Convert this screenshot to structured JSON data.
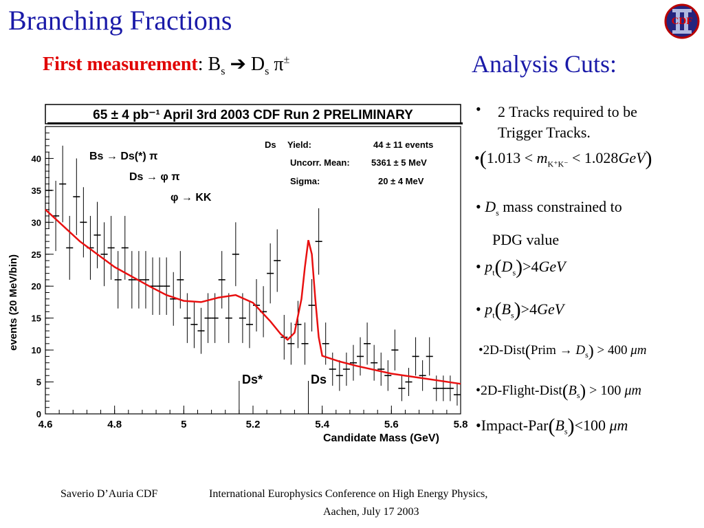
{
  "slide": {
    "title": "Branching Fractions",
    "logo_text": "CDF",
    "measurement_label": "First measurement",
    "measurement_rest": ": B",
    "measurement_sub1": "s",
    "measurement_arrow": " ➔ D",
    "measurement_sub2": "s",
    "measurement_pi": " π",
    "measurement_sup": "±",
    "cuts_title": "Analysis Cuts:",
    "cuts": {
      "c1_line1": "2 Tracks required to be",
      "c1_line2": "Trigger Tracks.",
      "c2_a": "1.013 < ",
      "c2_m": "m",
      "c2_sub": "K⁺K⁻",
      "c2_b": " < 1.028",
      "c2_unit": "GeV",
      "c3_d": "D",
      "c3_sub": "s",
      "c3_text": " mass constrained to",
      "c3_line2": "PDG value",
      "c4_p": "p",
      "c4_psub": "t",
      "c4_d": "D",
      "c4_dsub": "s",
      "c4_val": ">4",
      "c4_unit": "GeV",
      "c5_p": "p",
      "c5_psub": "t",
      "c5_b": "B",
      "c5_bsub": "s",
      "c5_val": ">4",
      "c5_unit": "GeV",
      "c6_a": "2D-Dist",
      "c6_b": "Prim → ",
      "c6_d": "D",
      "c6_dsub": "s",
      "c6_val": " > 400 ",
      "c6_unit": "μm",
      "c7_a": "2D-Flight-Dist",
      "c7_b": "B",
      "c7_bsub": "s",
      "c7_val": " > 100 ",
      "c7_unit": "μm",
      "c8_a": "Impact-Par",
      "c8_b": "B",
      "c8_bsub": "s",
      "c8_val": "<100 ",
      "c8_unit": "μm"
    },
    "footer_author": "Saverio D’Auria CDF",
    "footer_conf_line1": "International Europhysics Conference on High Energy Physics,",
    "footer_conf_line2": "Aachen, July 17 2003"
  },
  "chart_data": {
    "type": "scatter",
    "header": "65 ± 4 pb⁻¹    April 3rd 2003    CDF Run 2 PRELIMINARY",
    "xlabel": "Candidate Mass (GeV)",
    "ylabel": "events (20 MeV/bin)",
    "xlim": [
      4.6,
      5.8
    ],
    "ylim": [
      0,
      45
    ],
    "xticks": [
      4.6,
      4.8,
      5,
      5.2,
      5.4,
      5.6,
      5.8
    ],
    "xtick_labels": [
      "4.6",
      "4.8",
      "5",
      "5.2",
      "5.4",
      "5.6",
      "5.8"
    ],
    "yticks": [
      0,
      5,
      10,
      15,
      20,
      25,
      30,
      35,
      40
    ],
    "ytick_labels": [
      "0",
      "5",
      "10",
      "15",
      "20",
      "25",
      "30",
      "35",
      "40"
    ],
    "decay_labels": [
      "Bs → Ds(*) π",
      "Ds → φ π",
      "φ → KK"
    ],
    "fit_labels": [
      "Ds",
      "Yield:",
      "44 ± 11 events",
      "Uncorr. Mean:",
      "5361 ± 5 MeV",
      "Sigma:",
      "20 ± 4 MeV"
    ],
    "peak_labels": [
      "Ds*",
      "Ds"
    ],
    "series": [
      {
        "type": "points_with_errors",
        "x": [
          4.61,
          4.63,
          4.65,
          4.67,
          4.69,
          4.71,
          4.73,
          4.75,
          4.77,
          4.79,
          4.81,
          4.83,
          4.85,
          4.87,
          4.89,
          4.91,
          4.93,
          4.95,
          4.97,
          4.99,
          5.01,
          5.03,
          5.05,
          5.07,
          5.09,
          5.11,
          5.13,
          5.15,
          5.17,
          5.19,
          5.21,
          5.23,
          5.25,
          5.27,
          5.29,
          5.31,
          5.33,
          5.35,
          5.37,
          5.39,
          5.41,
          5.43,
          5.45,
          5.47,
          5.49,
          5.51,
          5.53,
          5.55,
          5.57,
          5.59,
          5.61,
          5.63,
          5.65,
          5.67,
          5.69,
          5.71,
          5.73,
          5.75,
          5.77,
          5.79
        ],
        "y": [
          35,
          31,
          36,
          26,
          34,
          30,
          26,
          28,
          25,
          26,
          21,
          26,
          21,
          21,
          21,
          20,
          20,
          20,
          18,
          21,
          15,
          14,
          13,
          15,
          15,
          21,
          15,
          25,
          15,
          14,
          17,
          16,
          22,
          24,
          12,
          11,
          14,
          11,
          17,
          27,
          11,
          7,
          6,
          7,
          8,
          9,
          11,
          8,
          7,
          6,
          10,
          4,
          5,
          9,
          6,
          9,
          4,
          4,
          4,
          3
        ],
        "err": [
          6,
          5.5,
          6,
          5,
          6,
          5.5,
          5,
          5.2,
          5,
          5,
          4.5,
          5,
          4.5,
          4.5,
          4.5,
          4.5,
          4.5,
          4.5,
          4.2,
          4.5,
          3.9,
          3.7,
          3.6,
          3.9,
          3.9,
          4.5,
          3.9,
          5,
          3.9,
          3.7,
          4.1,
          4,
          4.7,
          4.9,
          3.5,
          3.3,
          3.7,
          3.3,
          4.1,
          5.2,
          3.3,
          2.6,
          2.4,
          2.6,
          2.8,
          3,
          3.3,
          2.8,
          2.6,
          2.4,
          3.2,
          2,
          2.2,
          3,
          2.4,
          3,
          2,
          2,
          2,
          1.7
        ]
      },
      {
        "type": "fit_curve",
        "x": [
          4.6,
          4.7,
          4.8,
          4.9,
          4.95,
          5.0,
          5.05,
          5.1,
          5.15,
          5.2,
          5.25,
          5.28,
          5.3,
          5.32,
          5.34,
          5.35,
          5.36,
          5.37,
          5.38,
          5.39,
          5.4,
          5.45,
          5.5,
          5.6,
          5.7,
          5.8
        ],
        "y": [
          32,
          27,
          23,
          20,
          18.6,
          17.7,
          17.5,
          18.2,
          18.6,
          17.4,
          14.5,
          12.5,
          11.6,
          12.7,
          18,
          23,
          27.2,
          25,
          18,
          12,
          9.1,
          8.2,
          7.5,
          6.3,
          5.5,
          4.7
        ]
      }
    ]
  }
}
